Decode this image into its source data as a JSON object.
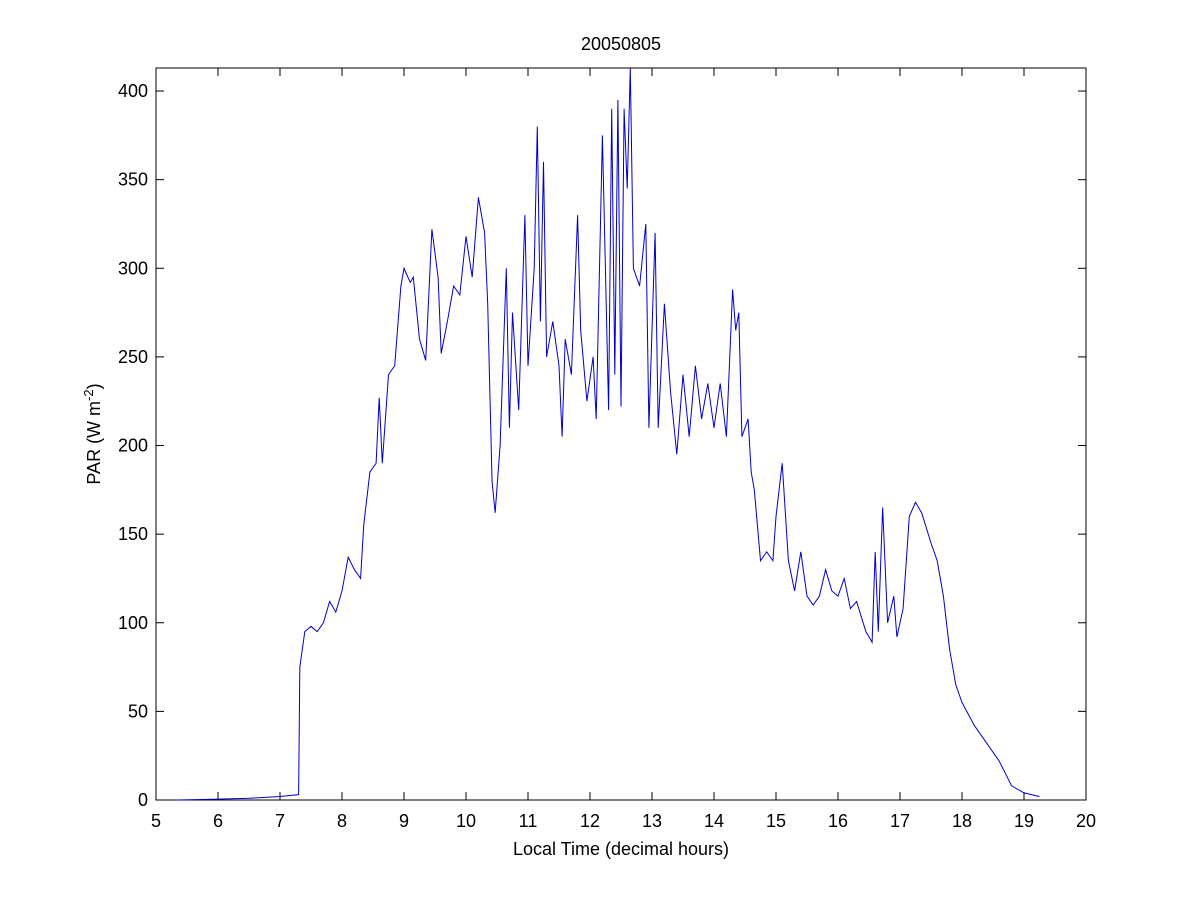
{
  "chart_data": {
    "type": "line",
    "title": "20050805",
    "xlabel": "Local Time (decimal hours)",
    "ylabel": [
      "PAR (W m",
      "-2",
      ")"
    ],
    "x": [
      5.35,
      6,
      6.5,
      7,
      7.3,
      7.32,
      7.4,
      7.5,
      7.6,
      7.7,
      7.8,
      7.9,
      8.0,
      8.1,
      8.2,
      8.3,
      8.35,
      8.45,
      8.55,
      8.6,
      8.65,
      8.75,
      8.85,
      8.95,
      9.0,
      9.1,
      9.15,
      9.25,
      9.35,
      9.45,
      9.55,
      9.6,
      9.7,
      9.8,
      9.9,
      10.0,
      10.1,
      10.2,
      10.3,
      10.35,
      10.42,
      10.47,
      10.55,
      10.65,
      10.7,
      10.75,
      10.85,
      10.95,
      11.0,
      11.1,
      11.15,
      11.2,
      11.25,
      11.3,
      11.4,
      11.5,
      11.55,
      11.6,
      11.7,
      11.8,
      11.85,
      11.95,
      12.05,
      12.1,
      12.2,
      12.3,
      12.35,
      12.4,
      12.45,
      12.5,
      12.55,
      12.6,
      12.65,
      12.7,
      12.8,
      12.9,
      12.95,
      13.05,
      13.1,
      13.2,
      13.3,
      13.4,
      13.5,
      13.6,
      13.7,
      13.8,
      13.9,
      14.0,
      14.1,
      14.2,
      14.3,
      14.35,
      14.4,
      14.45,
      14.55,
      14.6,
      14.65,
      14.75,
      14.85,
      14.95,
      15.0,
      15.1,
      15.2,
      15.3,
      15.4,
      15.5,
      15.6,
      15.7,
      15.8,
      15.9,
      16.0,
      16.1,
      16.2,
      16.3,
      16.45,
      16.55,
      16.6,
      16.65,
      16.72,
      16.8,
      16.9,
      16.95,
      17.05,
      17.15,
      17.25,
      17.35,
      17.5,
      17.6,
      17.7,
      17.8,
      17.9,
      18.0,
      18.2,
      18.4,
      18.6,
      18.8,
      19.0,
      19.25
    ],
    "series": [
      {
        "color": "#0000cc",
        "values": [
          0,
          0.5,
          1,
          2,
          3,
          75,
          95,
          98,
          95,
          100,
          112,
          106,
          118,
          137,
          130,
          125,
          155,
          185,
          190,
          227,
          190,
          240,
          245,
          290,
          300,
          292,
          295,
          260,
          248,
          322,
          295,
          252,
          270,
          290,
          285,
          318,
          295,
          340,
          320,
          280,
          180,
          162,
          200,
          300,
          210,
          275,
          220,
          330,
          245,
          300,
          380,
          270,
          360,
          250,
          270,
          245,
          205,
          260,
          240,
          330,
          265,
          225,
          250,
          215,
          375,
          220,
          390,
          240,
          395,
          222,
          390,
          345,
          413,
          300,
          290,
          325,
          210,
          320,
          210,
          280,
          230,
          195,
          240,
          205,
          245,
          215,
          235,
          210,
          235,
          205,
          288,
          265,
          275,
          205,
          215,
          185,
          175,
          135,
          140,
          135,
          160,
          190,
          135,
          118,
          140,
          115,
          110,
          115,
          130,
          118,
          115,
          125,
          108,
          112,
          95,
          89,
          140,
          95,
          165,
          100,
          115,
          92,
          108,
          160,
          168,
          162,
          145,
          135,
          115,
          85,
          65,
          55,
          42,
          32,
          22,
          8,
          4,
          2
        ]
      }
    ],
    "xlim": [
      5,
      20
    ],
    "xticks": [
      5,
      6,
      7,
      8,
      9,
      10,
      11,
      12,
      13,
      14,
      15,
      16,
      17,
      18,
      19,
      20
    ],
    "ylim": [
      0,
      413
    ],
    "yticks": [
      0,
      50,
      100,
      150,
      200,
      250,
      300,
      350,
      400
    ]
  }
}
